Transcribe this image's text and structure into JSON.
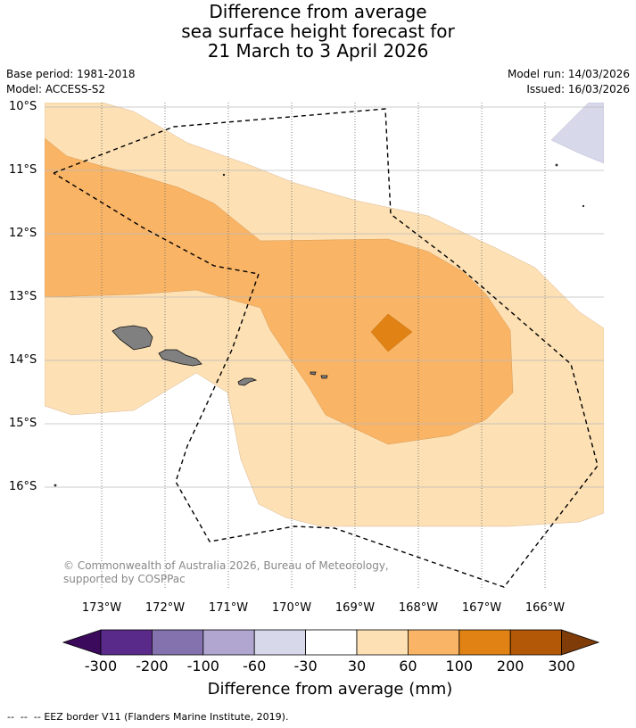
{
  "title": {
    "line1": "Difference from average",
    "line2": "sea surface height forecast for",
    "line3": "21 March to 3 April 2026"
  },
  "meta": {
    "base_period": "Base period: 1981-2018",
    "model": "Model: ACCESS-S2",
    "model_run": "Model run: 14/03/2026",
    "issued": "Issued: 16/03/2026"
  },
  "latitude_labels": [
    "10°S",
    "11°S",
    "12°S",
    "13°S",
    "14°S",
    "15°S",
    "16°S"
  ],
  "longitude_labels": [
    "173°W",
    "172°W",
    "171°W",
    "170°W",
    "169°W",
    "168°W",
    "167°W",
    "166°W"
  ],
  "copyright": "© Commonwealth of Australia 2026, Bureau of Meteorology, supported by COSPPac",
  "colorbar": {
    "title": "Difference from average (mm)",
    "tick_labels": [
      "-300",
      "-200",
      "-100",
      "-60",
      "-30",
      "30",
      "60",
      "100",
      "200",
      "300"
    ],
    "colors": [
      "#3b0a5c",
      "#5a2a8a",
      "#8472ae",
      "#b0a6d0",
      "#d7d8ea",
      "#ffffff",
      "#fde0b4",
      "#f9b465",
      "#e08214",
      "#b35806",
      "#7f3b08"
    ]
  },
  "legend": {
    "eez_border": "EEZ border V11 (Flanders Marine Institute, 2019)."
  }
}
